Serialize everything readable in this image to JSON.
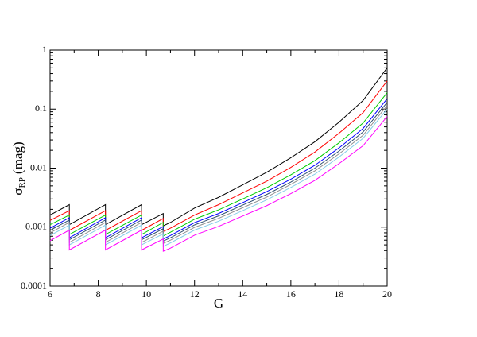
{
  "chart_data": {
    "type": "line",
    "x_label": "G",
    "y_label": {
      "symbol": "σ",
      "subscript": "RP",
      "unit": "(mag)"
    },
    "x": [
      6,
      6.8,
      6.8,
      8.3,
      8.3,
      9.8,
      9.8,
      10.7,
      10.7,
      11,
      12,
      13,
      14,
      15,
      16,
      17,
      18,
      19,
      20
    ],
    "xlim": [
      6,
      20
    ],
    "xticks": [
      6,
      8,
      10,
      12,
      14,
      16,
      18,
      20
    ],
    "ylim": [
      0.0001,
      1
    ],
    "yticks": [
      0.0001,
      0.001,
      0.01,
      0.1,
      1
    ],
    "y_scale": "log",
    "grid": false,
    "series": [
      {
        "color": "#000000",
        "values": [
          0.0016,
          0.0024,
          0.0011,
          0.0024,
          0.0011,
          0.0024,
          0.0011,
          0.0017,
          0.00105,
          0.0012,
          0.0021,
          0.0032,
          0.0052,
          0.0085,
          0.015,
          0.028,
          0.06,
          0.14,
          0.5
        ]
      },
      {
        "color": "#ff0000",
        "values": [
          0.0013,
          0.0019,
          0.00088,
          0.0019,
          0.00088,
          0.0019,
          0.00088,
          0.0014,
          0.00084,
          0.00096,
          0.0016,
          0.0024,
          0.0038,
          0.006,
          0.0103,
          0.0187,
          0.039,
          0.087,
          0.3
        ]
      },
      {
        "color": "#00cc00",
        "values": [
          0.0011,
          0.0016,
          0.00075,
          0.0016,
          0.00075,
          0.0016,
          0.00075,
          0.0012,
          0.00071,
          0.00082,
          0.00136,
          0.00196,
          0.003,
          0.00465,
          0.0077,
          0.0134,
          0.0268,
          0.058,
          0.19
        ]
      },
      {
        "color": "#0000ff",
        "values": [
          0.00096,
          0.00144,
          0.00066,
          0.00144,
          0.00066,
          0.00144,
          0.00066,
          0.00102,
          0.00063,
          0.00072,
          0.00119,
          0.0017,
          0.0026,
          0.004,
          0.0065,
          0.0112,
          0.022,
          0.047,
          0.15
        ]
      },
      {
        "color": "#2f4f6f",
        "values": [
          0.00088,
          0.00132,
          0.00061,
          0.00132,
          0.00061,
          0.00132,
          0.00061,
          0.00094,
          0.00058,
          0.00066,
          0.00109,
          0.00155,
          0.00236,
          0.00358,
          0.0058,
          0.01,
          0.0194,
          0.041,
          0.13
        ]
      },
      {
        "color": "#909090",
        "values": [
          0.0008,
          0.0012,
          0.00055,
          0.0012,
          0.00055,
          0.0012,
          0.00055,
          0.00085,
          0.00053,
          0.0006,
          0.00099,
          0.00141,
          0.00213,
          0.00323,
          0.0053,
          0.009,
          0.0174,
          0.036,
          0.115
        ]
      },
      {
        "color": "#87ceeb",
        "values": [
          0.00072,
          0.00108,
          0.0005,
          0.00108,
          0.0005,
          0.00108,
          0.0005,
          0.00077,
          0.00047,
          0.00054,
          0.00089,
          0.00126,
          0.0019,
          0.0029,
          0.0047,
          0.0079,
          0.0154,
          0.032,
          0.1
        ]
      },
      {
        "color": "#ff00ff",
        "values": [
          0.00059,
          0.00089,
          0.00041,
          0.00089,
          0.00041,
          0.00089,
          0.00041,
          0.00063,
          0.00039,
          0.00044,
          0.00073,
          0.00103,
          0.00154,
          0.00231,
          0.0037,
          0.0062,
          0.0119,
          0.024,
          0.075
        ]
      }
    ]
  }
}
